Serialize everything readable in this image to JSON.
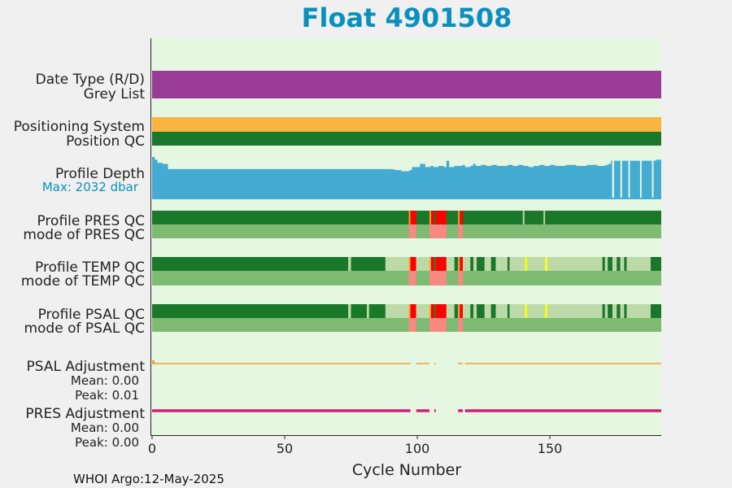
{
  "chart_data": {
    "type": "heatmap",
    "title": "Float 4901508",
    "xlabel": "Cycle Number",
    "xlim": [
      0,
      192
    ],
    "x_ticks": [
      "0",
      "50",
      "100",
      "150"
    ],
    "x_tick_values": [
      0,
      50,
      100,
      150
    ],
    "footer": "WHOI Argo:12-May-2025",
    "rows": [
      {
        "label": "Date Type (R/D)"
      },
      {
        "label": "Grey List"
      },
      {
        "label": "Positioning System"
      },
      {
        "label": "Position QC"
      },
      {
        "label": "Profile Depth",
        "sub": "Max: 2032 dbar"
      },
      {
        "label": "Profile PRES QC"
      },
      {
        "label": "mode of PRES QC"
      },
      {
        "label": "Profile TEMP QC"
      },
      {
        "label": "mode of TEMP QC"
      },
      {
        "label": "Profile PSAL QC"
      },
      {
        "label": "mode of PSAL QC"
      },
      {
        "label": "PSAL Adjustment",
        "stats": [
          "Mean: 0.00",
          "Peak: 0.01"
        ]
      },
      {
        "label": "PRES Adjustment",
        "stats": [
          "Mean: 0.00",
          "Peak: 0.00"
        ]
      }
    ],
    "colors": {
      "background": "#e5f7e1",
      "date_type": "#9a3b97",
      "positioning": "#fab541",
      "qc_good": "#19782a",
      "qc_mode_good": "#7fba72",
      "qc_light": "#bcdaa8",
      "qc_bad": "#ff0000",
      "qc_mode_bad": "#f88982",
      "qc_probable": "#ffff00",
      "qc_orange": "#f5a623",
      "depth": "#44abd2",
      "psal_adj": "#f0a030",
      "pres_adj": "#d81b7a",
      "title": "#0b90bd"
    },
    "profile_depth_max_dbar": 2032,
    "profile_depth_dbar": [
      [
        0,
        2032
      ],
      [
        1,
        1900
      ],
      [
        2,
        1750
      ],
      [
        3,
        1750
      ],
      [
        4,
        1700
      ],
      [
        5,
        1700
      ],
      [
        6,
        1450
      ],
      [
        30,
        1450
      ],
      [
        60,
        1450
      ],
      [
        90,
        1440
      ],
      [
        91,
        1420
      ],
      [
        92,
        1400
      ],
      [
        94,
        1350
      ],
      [
        97,
        1400
      ],
      [
        98,
        1550
      ],
      [
        99,
        1550
      ],
      [
        100,
        1550
      ],
      [
        101,
        1700
      ],
      [
        102,
        1700
      ],
      [
        103,
        1550
      ],
      [
        104,
        1550
      ],
      [
        105,
        1600
      ],
      [
        106,
        1550
      ],
      [
        108,
        1600
      ],
      [
        110,
        1550
      ],
      [
        111,
        1850
      ],
      [
        112,
        1550
      ],
      [
        114,
        1600
      ],
      [
        116,
        1600
      ],
      [
        117,
        1650
      ],
      [
        118,
        1550
      ],
      [
        120,
        1600
      ],
      [
        121,
        1700
      ],
      [
        122,
        1600
      ],
      [
        124,
        1650
      ],
      [
        126,
        1600
      ],
      [
        128,
        1650
      ],
      [
        130,
        1600
      ],
      [
        132,
        1600
      ],
      [
        134,
        1650
      ],
      [
        136,
        1600
      ],
      [
        138,
        1650
      ],
      [
        140,
        1600
      ],
      [
        142,
        1550
      ],
      [
        144,
        1600
      ],
      [
        146,
        1650
      ],
      [
        148,
        1600
      ],
      [
        150,
        1650
      ],
      [
        152,
        1600
      ],
      [
        156,
        1650
      ],
      [
        160,
        1600
      ],
      [
        164,
        1650
      ],
      [
        168,
        1600
      ],
      [
        171,
        1650
      ],
      [
        172,
        1700
      ],
      [
        173,
        1850
      ],
      [
        176,
        1850
      ],
      [
        178,
        1850
      ],
      [
        180,
        1850
      ],
      [
        182,
        1850
      ],
      [
        184,
        1850
      ],
      [
        186,
        1850
      ],
      [
        188,
        1850
      ],
      [
        190,
        1900
      ],
      [
        192,
        1950
      ]
    ],
    "profile_depth_gaps": [
      [
        173.5,
        174.2
      ],
      [
        176.6,
        177.2
      ],
      [
        179.6,
        180.2
      ],
      [
        184.0,
        184.6
      ],
      [
        188.5,
        189.1
      ]
    ],
    "pres_qc_events": [
      {
        "start": 96.8,
        "end": 97.4,
        "flag": "orange"
      },
      {
        "start": 97.4,
        "end": 99.6,
        "flag": "bad"
      },
      {
        "start": 104.6,
        "end": 105.2,
        "flag": "orange"
      },
      {
        "start": 105.2,
        "end": 106.4,
        "flag": "bad"
      },
      {
        "start": 106.4,
        "end": 107.0,
        "flag": "good"
      },
      {
        "start": 107.0,
        "end": 111.0,
        "flag": "bad"
      },
      {
        "start": 115.4,
        "end": 116.0,
        "flag": "orange"
      },
      {
        "start": 116.0,
        "end": 117.2,
        "flag": "bad"
      },
      {
        "start": 139.8,
        "end": 140.4,
        "flag": "light"
      },
      {
        "start": 147.6,
        "end": 148.2,
        "flag": "light"
      }
    ],
    "mode_pres_events": [
      {
        "start": 96.8,
        "end": 99.6,
        "flag": "mode_bad"
      },
      {
        "start": 104.6,
        "end": 111.0,
        "flag": "mode_bad"
      },
      {
        "start": 115.4,
        "end": 117.2,
        "flag": "mode_bad"
      }
    ],
    "temp_qc_segments": [
      {
        "start": 0,
        "end": 74,
        "flag": "good"
      },
      {
        "start": 74,
        "end": 75,
        "flag": "light"
      },
      {
        "start": 75,
        "end": 88,
        "flag": "good"
      },
      {
        "start": 88,
        "end": 96.8,
        "flag": "light"
      },
      {
        "start": 96.8,
        "end": 97.4,
        "flag": "orange"
      },
      {
        "start": 97.4,
        "end": 99.6,
        "flag": "bad"
      },
      {
        "start": 99.6,
        "end": 104.6,
        "flag": "light"
      },
      {
        "start": 104.6,
        "end": 105.2,
        "flag": "orange"
      },
      {
        "start": 105.2,
        "end": 106.4,
        "flag": "bad"
      },
      {
        "start": 106.4,
        "end": 107.0,
        "flag": "good"
      },
      {
        "start": 107.0,
        "end": 111.0,
        "flag": "bad"
      },
      {
        "start": 111.0,
        "end": 114.0,
        "flag": "light"
      },
      {
        "start": 114.0,
        "end": 115.4,
        "flag": "good"
      },
      {
        "start": 115.4,
        "end": 116.0,
        "flag": "orange"
      },
      {
        "start": 116.0,
        "end": 117.2,
        "flag": "bad"
      },
      {
        "start": 117.2,
        "end": 120.0,
        "flag": "light"
      },
      {
        "start": 120.0,
        "end": 121.2,
        "flag": "good"
      },
      {
        "start": 121.2,
        "end": 122.4,
        "flag": "light"
      },
      {
        "start": 122.4,
        "end": 125.4,
        "flag": "good"
      },
      {
        "start": 125.4,
        "end": 127.8,
        "flag": "light"
      },
      {
        "start": 127.8,
        "end": 129.6,
        "flag": "good"
      },
      {
        "start": 129.6,
        "end": 134.0,
        "flag": "light"
      },
      {
        "start": 134.0,
        "end": 134.8,
        "flag": "good"
      },
      {
        "start": 134.8,
        "end": 140.6,
        "flag": "light"
      },
      {
        "start": 140.6,
        "end": 141.4,
        "flag": "probable"
      },
      {
        "start": 141.4,
        "end": 148.2,
        "flag": "light"
      },
      {
        "start": 148.2,
        "end": 149.0,
        "flag": "probable"
      },
      {
        "start": 149.0,
        "end": 169.8,
        "flag": "light"
      },
      {
        "start": 169.8,
        "end": 170.8,
        "flag": "good"
      },
      {
        "start": 170.8,
        "end": 171.8,
        "flag": "light"
      },
      {
        "start": 171.8,
        "end": 173.6,
        "flag": "good"
      },
      {
        "start": 173.6,
        "end": 175.2,
        "flag": "light"
      },
      {
        "start": 175.2,
        "end": 176.6,
        "flag": "good"
      },
      {
        "start": 176.6,
        "end": 178.0,
        "flag": "light"
      },
      {
        "start": 178.0,
        "end": 179.0,
        "flag": "good"
      },
      {
        "start": 179.0,
        "end": 188.0,
        "flag": "light"
      },
      {
        "start": 188.0,
        "end": 192.0,
        "flag": "good"
      }
    ],
    "psal_qc_segments": [
      {
        "start": 0,
        "end": 74,
        "flag": "good"
      },
      {
        "start": 74,
        "end": 75,
        "flag": "light"
      },
      {
        "start": 75,
        "end": 81,
        "flag": "good"
      },
      {
        "start": 81,
        "end": 81.8,
        "flag": "light"
      },
      {
        "start": 81.8,
        "end": 88,
        "flag": "good"
      },
      {
        "start": 88,
        "end": 96.8,
        "flag": "light"
      },
      {
        "start": 96.8,
        "end": 97.4,
        "flag": "orange"
      },
      {
        "start": 97.4,
        "end": 99.6,
        "flag": "bad"
      },
      {
        "start": 99.6,
        "end": 104.6,
        "flag": "light"
      },
      {
        "start": 104.6,
        "end": 105.2,
        "flag": "orange"
      },
      {
        "start": 105.2,
        "end": 106.4,
        "flag": "bad"
      },
      {
        "start": 106.4,
        "end": 107.0,
        "flag": "good"
      },
      {
        "start": 107.0,
        "end": 111.0,
        "flag": "bad"
      },
      {
        "start": 111.0,
        "end": 114.0,
        "flag": "light"
      },
      {
        "start": 114.0,
        "end": 115.4,
        "flag": "good"
      },
      {
        "start": 115.4,
        "end": 116.0,
        "flag": "orange"
      },
      {
        "start": 116.0,
        "end": 117.2,
        "flag": "bad"
      },
      {
        "start": 117.2,
        "end": 120.0,
        "flag": "light"
      },
      {
        "start": 120.0,
        "end": 121.2,
        "flag": "good"
      },
      {
        "start": 121.2,
        "end": 122.4,
        "flag": "light"
      },
      {
        "start": 122.4,
        "end": 125.4,
        "flag": "good"
      },
      {
        "start": 125.4,
        "end": 127.8,
        "flag": "light"
      },
      {
        "start": 127.8,
        "end": 129.6,
        "flag": "good"
      },
      {
        "start": 129.6,
        "end": 134.0,
        "flag": "light"
      },
      {
        "start": 134.0,
        "end": 134.8,
        "flag": "good"
      },
      {
        "start": 134.8,
        "end": 140.6,
        "flag": "light"
      },
      {
        "start": 140.6,
        "end": 141.4,
        "flag": "probable"
      },
      {
        "start": 141.4,
        "end": 148.2,
        "flag": "light"
      },
      {
        "start": 148.2,
        "end": 149.0,
        "flag": "probable"
      },
      {
        "start": 149.0,
        "end": 169.8,
        "flag": "light"
      },
      {
        "start": 169.8,
        "end": 170.8,
        "flag": "good"
      },
      {
        "start": 170.8,
        "end": 171.8,
        "flag": "light"
      },
      {
        "start": 171.8,
        "end": 173.6,
        "flag": "good"
      },
      {
        "start": 173.6,
        "end": 175.2,
        "flag": "light"
      },
      {
        "start": 175.2,
        "end": 176.6,
        "flag": "good"
      },
      {
        "start": 176.6,
        "end": 178.0,
        "flag": "light"
      },
      {
        "start": 178.0,
        "end": 179.0,
        "flag": "good"
      },
      {
        "start": 179.0,
        "end": 188.0,
        "flag": "light"
      },
      {
        "start": 188.0,
        "end": 192.0,
        "flag": "good"
      }
    ],
    "adjustment_gaps": [
      [
        97.4,
        99.6
      ],
      [
        104.6,
        106.4
      ],
      [
        107.0,
        115.4
      ],
      [
        117.2,
        118.0
      ]
    ]
  }
}
